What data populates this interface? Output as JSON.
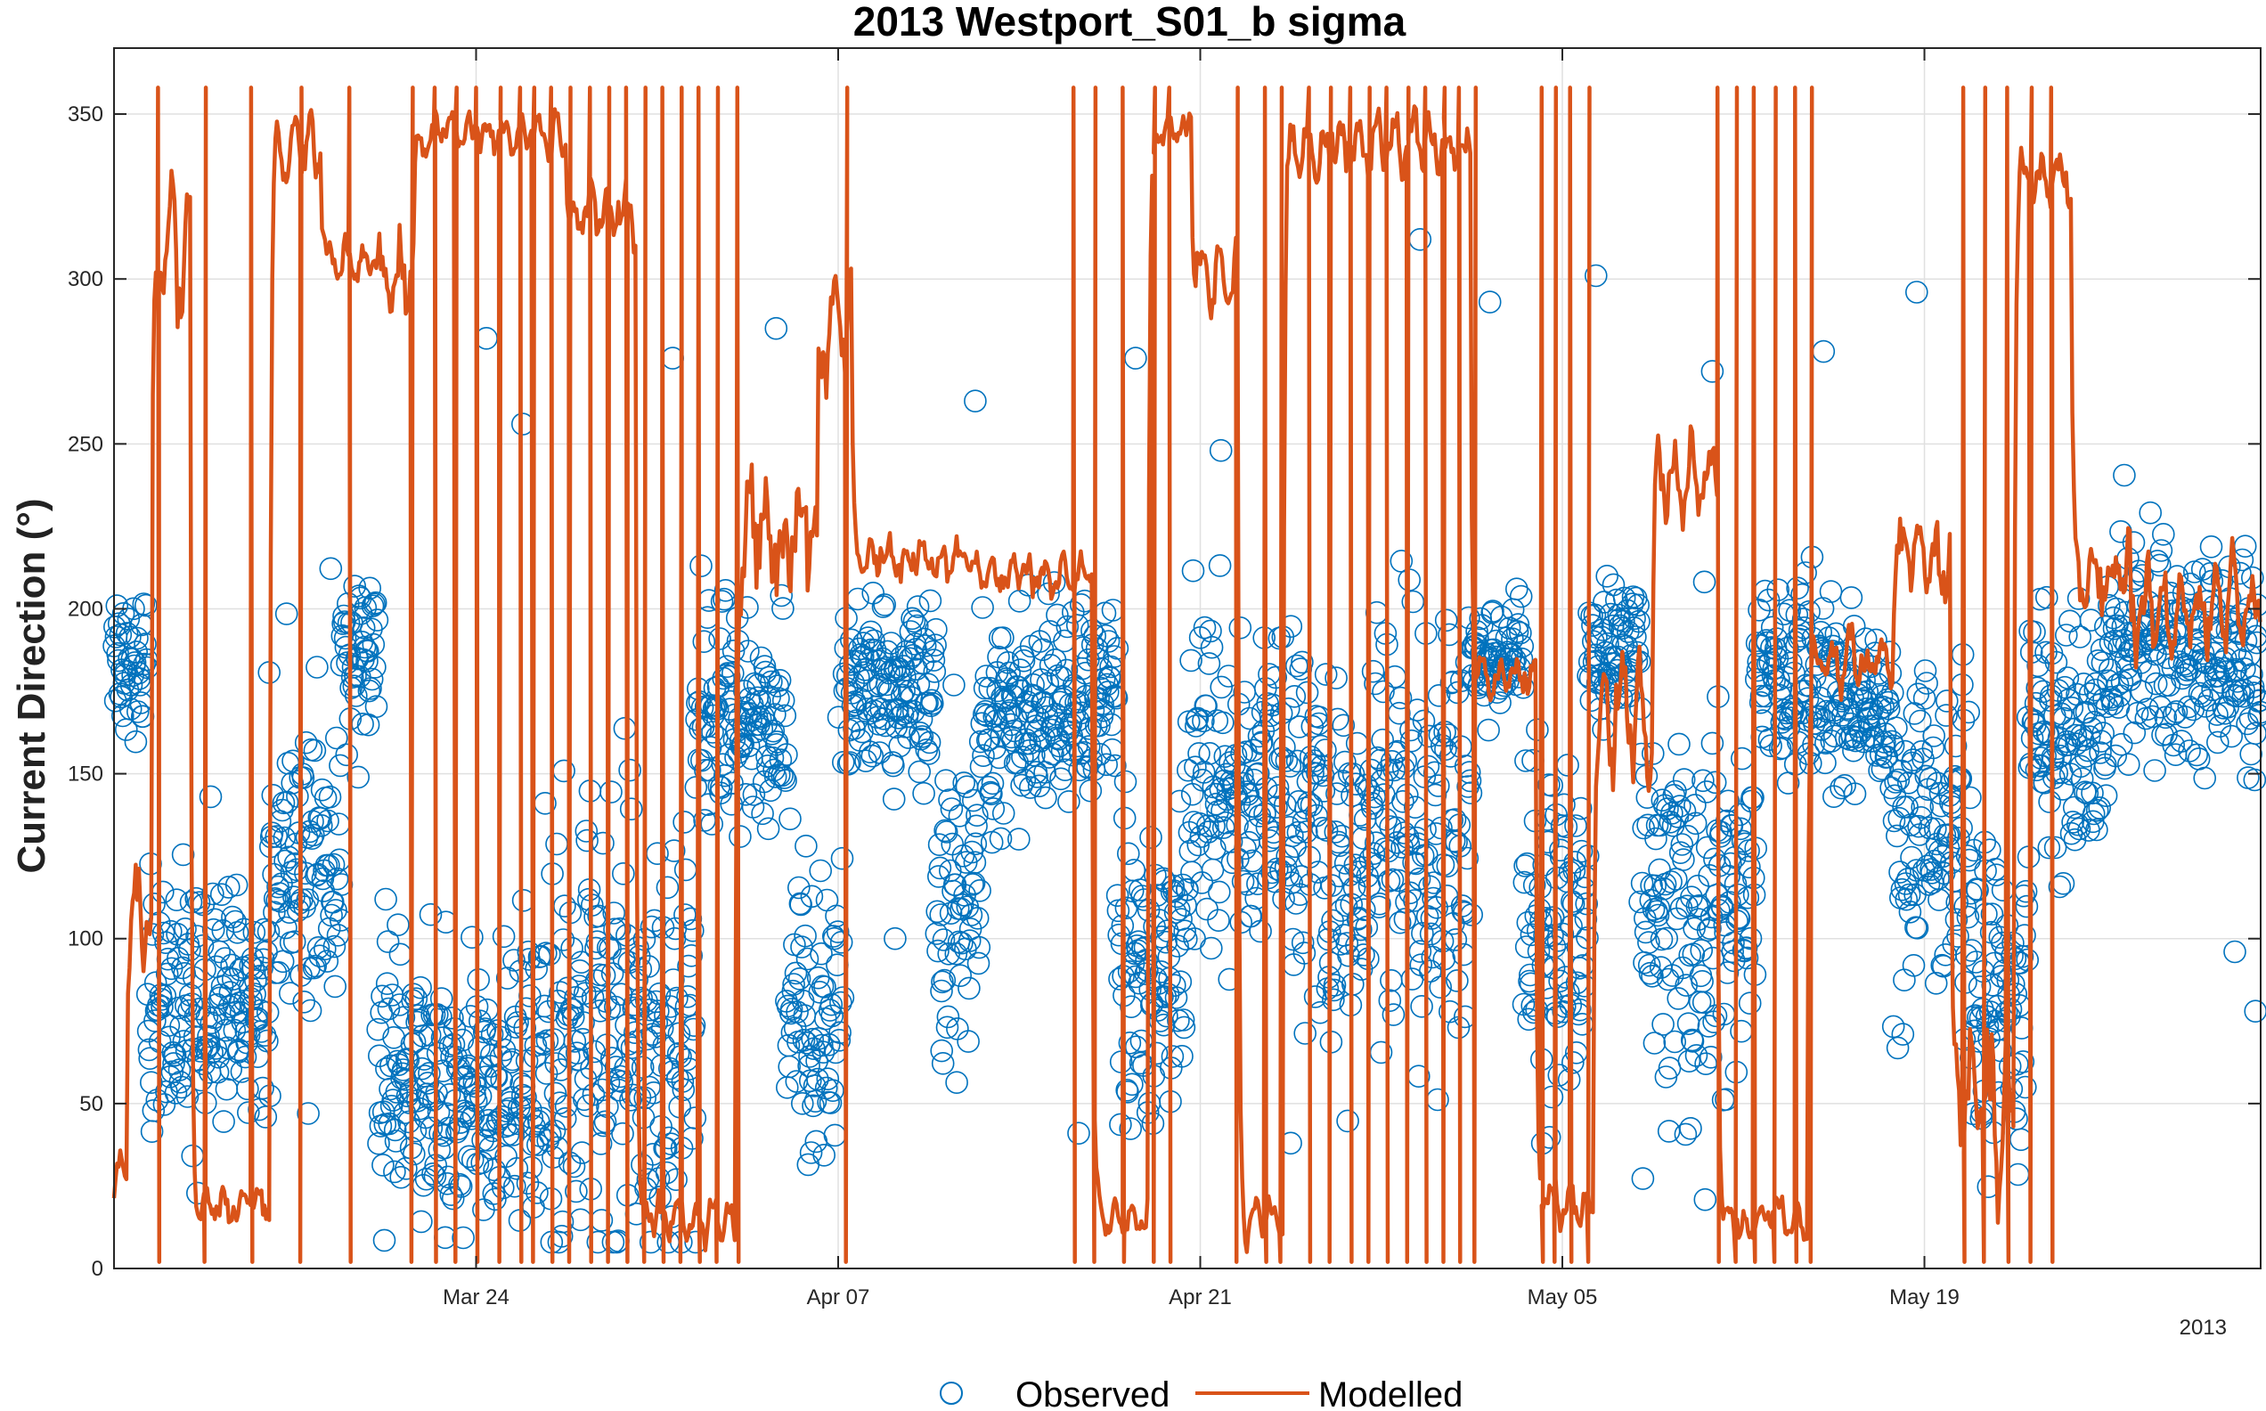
{
  "chart_data": {
    "type": "line",
    "title": "2013 Westport_S01_b sigma",
    "ylabel": "Current Direction (°)",
    "xlabel": "",
    "x_axis_secondary_label": "2013",
    "ylim": [
      0,
      370
    ],
    "yticks": [
      0,
      50,
      100,
      150,
      200,
      250,
      300,
      350
    ],
    "xlim_days": [
      0,
      83
    ],
    "xticks": [
      {
        "day": 14,
        "label": "Mar 24"
      },
      {
        "day": 28,
        "label": "Apr 07"
      },
      {
        "day": 42,
        "label": "Apr 21"
      },
      {
        "day": 56,
        "label": "May 05"
      },
      {
        "day": 70,
        "label": "May 19"
      }
    ],
    "grid": true,
    "legend_position": "bottom-center",
    "series": [
      {
        "name": "Observed",
        "marker": "open-circle",
        "color": "#0072BD",
        "bands": [
          {
            "start": 0,
            "end": 1.3,
            "center": 185,
            "spread": 22
          },
          {
            "start": 1.3,
            "end": 6.0,
            "center": 80,
            "spread": 35
          },
          {
            "start": 6.0,
            "end": 8.8,
            "center": 120,
            "spread": 45
          },
          {
            "start": 8.8,
            "end": 10.2,
            "center": 185,
            "spread": 25
          },
          {
            "start": 10.2,
            "end": 16.5,
            "center": 55,
            "spread": 40
          },
          {
            "start": 16.5,
            "end": 22.5,
            "center": 70,
            "spread": 55
          },
          {
            "start": 22.5,
            "end": 26.0,
            "center": 165,
            "spread": 30
          },
          {
            "start": 26.0,
            "end": 28.2,
            "center": 80,
            "spread": 45
          },
          {
            "start": 28.2,
            "end": 31.8,
            "center": 175,
            "spread": 25
          },
          {
            "start": 31.8,
            "end": 33.5,
            "center": 110,
            "spread": 40
          },
          {
            "start": 33.5,
            "end": 38.8,
            "center": 170,
            "spread": 30
          },
          {
            "start": 38.8,
            "end": 41.5,
            "center": 90,
            "spread": 45
          },
          {
            "start": 41.5,
            "end": 45.8,
            "center": 145,
            "spread": 45
          },
          {
            "start": 45.8,
            "end": 52.5,
            "center": 130,
            "spread": 60
          },
          {
            "start": 52.5,
            "end": 54.5,
            "center": 185,
            "spread": 15
          },
          {
            "start": 54.5,
            "end": 57.0,
            "center": 100,
            "spread": 50
          },
          {
            "start": 57.0,
            "end": 59.0,
            "center": 190,
            "spread": 20
          },
          {
            "start": 59.0,
            "end": 63.5,
            "center": 110,
            "spread": 55
          },
          {
            "start": 63.5,
            "end": 66.5,
            "center": 180,
            "spread": 30
          },
          {
            "start": 66.5,
            "end": 68.8,
            "center": 170,
            "spread": 25
          },
          {
            "start": 68.8,
            "end": 71.8,
            "center": 130,
            "spread": 50
          },
          {
            "start": 71.8,
            "end": 74.0,
            "center": 80,
            "spread": 45
          },
          {
            "start": 74.0,
            "end": 77.0,
            "center": 160,
            "spread": 35
          },
          {
            "start": 77.0,
            "end": 83.0,
            "center": 185,
            "spread": 30
          }
        ],
        "outliers": [
          {
            "x": 14.4,
            "y": 282
          },
          {
            "x": 15.8,
            "y": 256
          },
          {
            "x": 21.6,
            "y": 276
          },
          {
            "x": 25.6,
            "y": 285
          },
          {
            "x": 33.3,
            "y": 263
          },
          {
            "x": 39.5,
            "y": 276
          },
          {
            "x": 42.8,
            "y": 248
          },
          {
            "x": 50.5,
            "y": 312
          },
          {
            "x": 53.2,
            "y": 293
          },
          {
            "x": 57.3,
            "y": 301
          },
          {
            "x": 61.8,
            "y": 272
          },
          {
            "x": 66.1,
            "y": 278
          },
          {
            "x": 69.7,
            "y": 296
          },
          {
            "x": 37.3,
            "y": 41
          },
          {
            "x": 32.0,
            "y": 66
          },
          {
            "x": 45.5,
            "y": 38
          },
          {
            "x": 55.6,
            "y": 52
          },
          {
            "x": 82.8,
            "y": 78
          },
          {
            "x": 82.0,
            "y": 96
          },
          {
            "x": 30.2,
            "y": 100
          }
        ]
      },
      {
        "name": "Modelled",
        "marker": "line",
        "color": "#D95319",
        "segments": [
          {
            "start": 0.0,
            "end": 0.5,
            "center": 30,
            "spread": 10
          },
          {
            "start": 0.5,
            "end": 1.5,
            "center": 110,
            "spread": 20
          },
          {
            "start": 1.5,
            "end": 3.0,
            "center": 310,
            "spread": 30
          },
          {
            "start": 3.0,
            "end": 6.0,
            "center": 20,
            "spread": 10
          },
          {
            "start": 6.0,
            "end": 8.0,
            "center": 340,
            "spread": 15
          },
          {
            "start": 8.0,
            "end": 10.2,
            "center": 305,
            "spread": 10
          },
          {
            "start": 10.2,
            "end": 11.6,
            "center": 300,
            "spread": 20
          },
          {
            "start": 11.6,
            "end": 17.5,
            "center": 345,
            "spread": 10
          },
          {
            "start": 17.5,
            "end": 20.2,
            "center": 320,
            "spread": 15
          },
          {
            "start": 20.2,
            "end": 24.0,
            "center": 15,
            "spread": 10
          },
          {
            "start": 24.0,
            "end": 27.2,
            "center": 220,
            "spread": 30
          },
          {
            "start": 27.2,
            "end": 28.5,
            "center": 290,
            "spread": 30
          },
          {
            "start": 28.5,
            "end": 33.0,
            "center": 215,
            "spread": 10
          },
          {
            "start": 33.0,
            "end": 37.8,
            "center": 210,
            "spread": 10
          },
          {
            "start": 37.8,
            "end": 40.0,
            "center": 15,
            "spread": 10
          },
          {
            "start": 40.0,
            "end": 41.7,
            "center": 345,
            "spread": 8
          },
          {
            "start": 41.7,
            "end": 43.5,
            "center": 300,
            "spread": 20
          },
          {
            "start": 43.5,
            "end": 45.2,
            "center": 15,
            "spread": 10
          },
          {
            "start": 45.2,
            "end": 52.5,
            "center": 340,
            "spread": 15
          },
          {
            "start": 52.5,
            "end": 55.0,
            "center": 180,
            "spread": 10
          },
          {
            "start": 55.0,
            "end": 57.2,
            "center": 20,
            "spread": 10
          },
          {
            "start": 57.2,
            "end": 59.5,
            "center": 170,
            "spread": 30
          },
          {
            "start": 59.5,
            "end": 62.0,
            "center": 240,
            "spread": 20
          },
          {
            "start": 62.0,
            "end": 65.5,
            "center": 15,
            "spread": 10
          },
          {
            "start": 65.5,
            "end": 68.8,
            "center": 185,
            "spread": 15
          },
          {
            "start": 68.8,
            "end": 71.0,
            "center": 215,
            "spread": 20
          },
          {
            "start": 71.0,
            "end": 73.5,
            "center": 50,
            "spread": 30
          },
          {
            "start": 73.5,
            "end": 75.7,
            "center": 330,
            "spread": 15
          },
          {
            "start": 75.7,
            "end": 78.0,
            "center": 210,
            "spread": 20
          },
          {
            "start": 78.0,
            "end": 83.0,
            "center": 200,
            "spread": 20
          }
        ],
        "wraps": [
          1.7,
          3.5,
          5.3,
          7.2,
          9.1,
          11.5,
          12.4,
          13.2,
          14.0,
          14.9,
          15.7,
          16.2,
          16.9,
          17.6,
          18.4,
          19.1,
          19.8,
          20.5,
          21.2,
          21.9,
          22.6,
          23.3,
          24.1,
          28.3,
          37.1,
          37.9,
          39.0,
          40.2,
          40.8,
          43.4,
          44.5,
          45.1,
          46.2,
          47.0,
          47.8,
          48.5,
          49.2,
          50.0,
          50.7,
          51.4,
          52.0,
          52.6,
          55.2,
          55.7,
          56.3,
          57.0,
          62.0,
          62.7,
          63.4,
          64.2,
          65.0,
          65.6,
          71.5,
          72.3,
          73.2,
          74.1,
          74.9
        ]
      }
    ]
  }
}
